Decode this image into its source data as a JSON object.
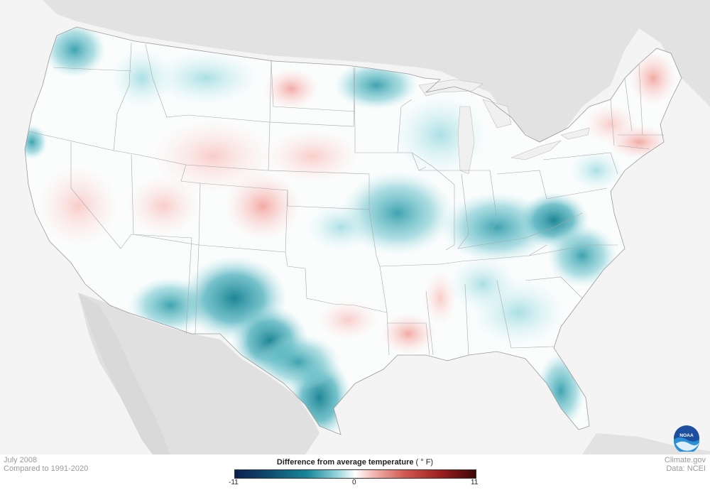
{
  "map": {
    "month_label": "July 2008",
    "baseline_label": "Compared to 1991-2020",
    "source_label": "Climate.gov",
    "data_label": "Data: NCEI"
  },
  "legend": {
    "title": "Difference from average temperature",
    "unit": "( ° F)",
    "min_label": "-11",
    "mid_label": "0",
    "max_label": "11",
    "scale": [
      -11,
      0,
      11
    ],
    "colors": {
      "cold_extreme": "#0b1f4f",
      "cold": "#16869a",
      "neutral": "#ffffff",
      "warm": "#d35b55",
      "warm_extreme": "#3e0606"
    }
  },
  "logo": {
    "name": "noaa-logo",
    "text": "NOAA"
  }
}
